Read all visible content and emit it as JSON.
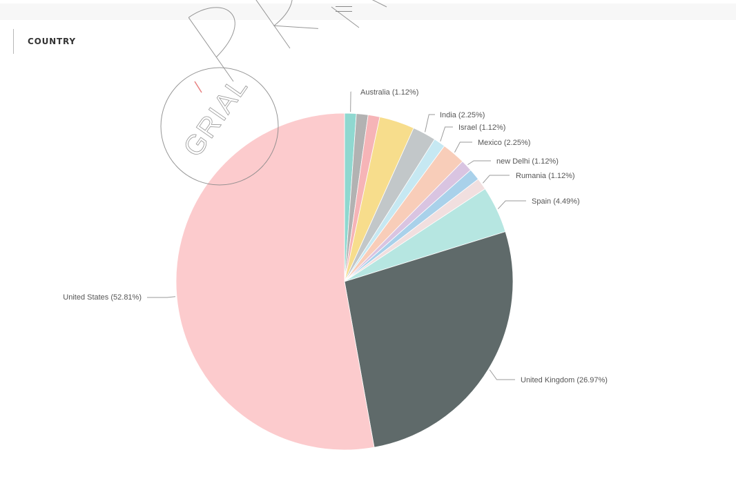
{
  "visual": {
    "title": "COUNTRY"
  },
  "chart_data": {
    "type": "pie",
    "title": "COUNTRY",
    "slices": [
      {
        "label": "Australia (1.12%)",
        "category": "Australia",
        "value": 1.12,
        "color": "#8fd8d0"
      },
      {
        "label": "",
        "category": "",
        "value": 1.12,
        "color": "#b2b2b2"
      },
      {
        "label": "",
        "category": "",
        "value": 1.12,
        "color": "#f6b4b7"
      },
      {
        "label": "",
        "category": "",
        "value": 3.37,
        "color": "#f7dd8c"
      },
      {
        "label": "India (2.25%)",
        "category": "India",
        "value": 2.25,
        "color": "#c2c7c9"
      },
      {
        "label": "Israel (1.12%)",
        "category": "Israel",
        "value": 1.12,
        "color": "#c6e8f2"
      },
      {
        "label": "Mexico (2.25%)",
        "category": "Mexico",
        "value": 2.25,
        "color": "#f8cdb9"
      },
      {
        "label": "new Delhi (1.12%)",
        "category": "new Delhi",
        "value": 1.12,
        "color": "#d9c4e1"
      },
      {
        "label": "",
        "category": "",
        "value": 1.12,
        "color": "#a9d1ea"
      },
      {
        "label": "Rumania (1.12%)",
        "category": "Rumania",
        "value": 1.12,
        "color": "#f1dfdf"
      },
      {
        "label": "Spain (4.49%)",
        "category": "Spain",
        "value": 4.49,
        "color": "#b6e6e1"
      },
      {
        "label": "United Kingdom (26.97%)",
        "category": "United Kingdom",
        "value": 26.97,
        "color": "#5f6a6a"
      },
      {
        "label": "United States (52.81%)",
        "category": "United States",
        "value": 52.81,
        "color": "#fccbcd"
      }
    ]
  },
  "watermark": {
    "text": "GRIAL",
    "big_text": "PRE"
  }
}
